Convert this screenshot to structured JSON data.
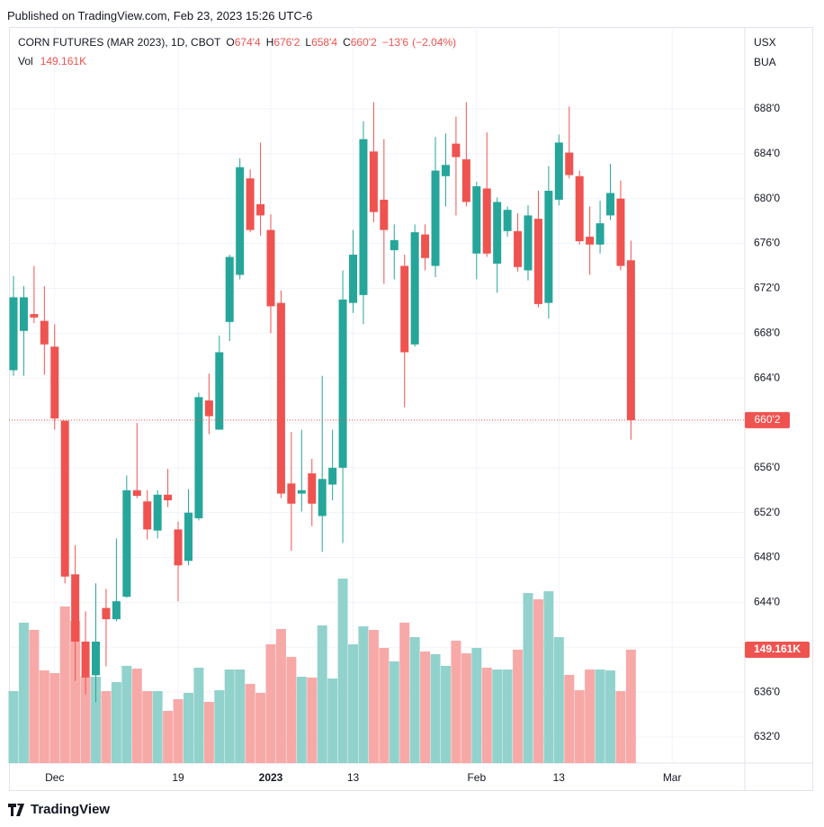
{
  "published": "Published on TradingView.com, Feb 23, 2023 15:26 UTC-6",
  "chart_data": {
    "type": "candlestick",
    "symbol": "CORN FUTURES (MAR 2023), 1D, CBOT",
    "legend_fields": [
      {
        "name": "O",
        "value": 674.5,
        "label": "674'4"
      },
      {
        "name": "H",
        "value": 676.25,
        "label": "676'2"
      },
      {
        "name": "L",
        "value": 658.5,
        "label": "658'4"
      },
      {
        "name": "C",
        "value": 660.25,
        "label": "660'2"
      }
    ],
    "change": {
      "value": -13.75,
      "label": "−13'6"
    },
    "change_percent": {
      "value": -2.04,
      "label": "(−2.04%)"
    },
    "volume_legend": {
      "name": "Vol",
      "value": 149161,
      "label": "149.161K"
    },
    "currency_labels": [
      "USX",
      "BUA"
    ],
    "categories": [
      null,
      null,
      null,
      null,
      "Dec",
      null,
      null,
      null,
      null,
      null,
      null,
      null,
      null,
      null,
      null,
      null,
      "19",
      null,
      null,
      null,
      null,
      null,
      null,
      null,
      null,
      "2023",
      null,
      null,
      null,
      null,
      null,
      null,
      null,
      "13",
      null,
      null,
      null,
      null,
      null,
      null,
      null,
      null,
      null,
      null,
      null,
      "Feb",
      null,
      null,
      null,
      null,
      null,
      null,
      null,
      "13",
      null,
      null,
      null,
      null,
      null,
      null,
      null,
      null,
      null,
      null,
      "Mar"
    ],
    "open": [
      664.7,
      668.2,
      669.7,
      669.1,
      666.8,
      660.2,
      646.5,
      640.5,
      637.5,
      643.5,
      642.5,
      644.5,
      654.0,
      653.0,
      650.4,
      653.6,
      650.5,
      647.7,
      651.5,
      662.0,
      659.4,
      669.0,
      673.2,
      681.8,
      679.5,
      677.2,
      670.7,
      654.6,
      653.7,
      655.5,
      651.7,
      654.5,
      656.0,
      670.7,
      671.4,
      684.2,
      679.9,
      675.4,
      674.0,
      667.0,
      676.8,
      674.0,
      682.0,
      684.9,
      683.5,
      675.1,
      680.9,
      674.2,
      677.1,
      677.1,
      673.6,
      678.2,
      670.7,
      679.9,
      684.1,
      682.0,
      676.6,
      675.9,
      678.5,
      680.0,
      674.5,
      null,
      null,
      null,
      null
    ],
    "high": [
      673.1,
      672.2,
      674.0,
      672.2,
      668.8,
      660.2,
      649.1,
      643.2,
      645.7,
      645.2,
      649.7,
      655.3,
      660.0,
      654.0,
      654.0,
      655.9,
      651.2,
      654.1,
      662.7,
      664.4,
      667.8,
      675.0,
      683.6,
      682.6,
      685.0,
      678.6,
      671.8,
      659.2,
      659.4,
      656.8,
      664.2,
      659.4,
      673.6,
      677.2,
      686.9,
      688.6,
      685.3,
      677.7,
      675.0,
      677.7,
      677.7,
      685.5,
      685.8,
      687.3,
      688.6,
      681.5,
      685.9,
      680.1,
      679.3,
      678.7,
      679.4,
      680.7,
      682.9,
      685.7,
      688.2,
      682.5,
      679.3,
      679.8,
      683.1,
      681.6,
      676.25,
      null,
      null,
      null,
      null
    ],
    "low": [
      664.2,
      664.2,
      668.9,
      664.3,
      659.4,
      645.7,
      637.0,
      635.8,
      635.1,
      638.3,
      642.3,
      644.4,
      653.3,
      649.6,
      649.7,
      652.5,
      644.1,
      647.3,
      651.3,
      659.0,
      659.4,
      667.3,
      672.8,
      677.0,
      676.7,
      668.0,
      653.3,
      648.6,
      652.1,
      650.8,
      648.5,
      653.1,
      649.3,
      669.8,
      668.8,
      677.9,
      672.4,
      672.8,
      661.4,
      666.8,
      673.6,
      673.0,
      679.3,
      678.5,
      679.3,
      672.8,
      674.8,
      671.6,
      676.6,
      673.5,
      672.7,
      670.3,
      669.3,
      679.4,
      681.8,
      675.9,
      673.2,
      675.1,
      678.1,
      673.6,
      658.5,
      null,
      null,
      null,
      null
    ],
    "close": [
      671.2,
      671.2,
      669.4,
      667.0,
      660.4,
      646.3,
      640.5,
      637.3,
      640.5,
      642.5,
      644.1,
      654.0,
      653.5,
      650.5,
      653.6,
      653.1,
      647.3,
      652.0,
      662.3,
      660.6,
      666.3,
      674.8,
      682.8,
      677.2,
      678.5,
      670.4,
      653.7,
      652.8,
      654.0,
      652.8,
      655.0,
      656.0,
      671.0,
      675.0,
      685.3,
      678.8,
      677.2,
      676.3,
      666.3,
      677.0,
      674.7,
      682.5,
      683.0,
      683.7,
      679.7,
      681.1,
      675.1,
      679.7,
      679.0,
      673.9,
      678.5,
      670.6,
      680.7,
      685.0,
      682.1,
      676.2,
      675.9,
      677.8,
      680.5,
      674.0,
      660.25,
      null,
      null,
      null,
      null
    ],
    "volume": [
      94700,
      184700,
      175200,
      121900,
      118400,
      206000,
      187000,
      113600,
      113600,
      94700,
      106500,
      127900,
      124300,
      94700,
      94700,
      68700,
      84100,
      92300,
      125500,
      80500,
      95900,
      123100,
      123100,
      104200,
      92300,
      156300,
      176400,
      139700,
      113600,
      112500,
      181100,
      111300,
      242700,
      156300,
      179900,
      175200,
      151500,
      133800,
      184700,
      165700,
      146800,
      143200,
      127900,
      161000,
      144400,
      151500,
      125500,
      123100,
      123100,
      149200,
      223700,
      215500,
      226100,
      165700,
      116000,
      95900,
      123100,
      123100,
      121900,
      94700,
      149161,
      null,
      null,
      null,
      null
    ],
    "ylim": [
      629.67,
      695.3
    ],
    "yticks": [
      {
        "value": 632,
        "label": "632'0"
      },
      {
        "value": 636,
        "label": "636'0"
      },
      {
        "value": 640,
        "label": "640'0"
      },
      {
        "value": 644,
        "label": "644'0"
      },
      {
        "value": 648,
        "label": "648'0"
      },
      {
        "value": 652,
        "label": "652'0"
      },
      {
        "value": 656,
        "label": "656'0"
      },
      {
        "value": 660,
        "label": "660'0"
      },
      {
        "value": 664,
        "label": "664'0"
      },
      {
        "value": 668,
        "label": "668'0"
      },
      {
        "value": 672,
        "label": "672'0"
      },
      {
        "value": 676,
        "label": "676'0"
      },
      {
        "value": 680,
        "label": "680'0"
      },
      {
        "value": 684,
        "label": "684'0"
      },
      {
        "value": 688,
        "label": "688'0"
      }
    ],
    "volume_ylim": [
      0,
      400000
    ],
    "last_price": {
      "value": 660.25,
      "label": "660'2"
    },
    "last_volume": {
      "value": 149161,
      "label": "149.161K"
    },
    "up_color": "#26a69a",
    "down_color": "#ef5350",
    "volume_up_color": "#92d2cc",
    "volume_down_color": "#f7a9a7",
    "grid": true
  },
  "footer": {
    "brand": "TradingView"
  }
}
